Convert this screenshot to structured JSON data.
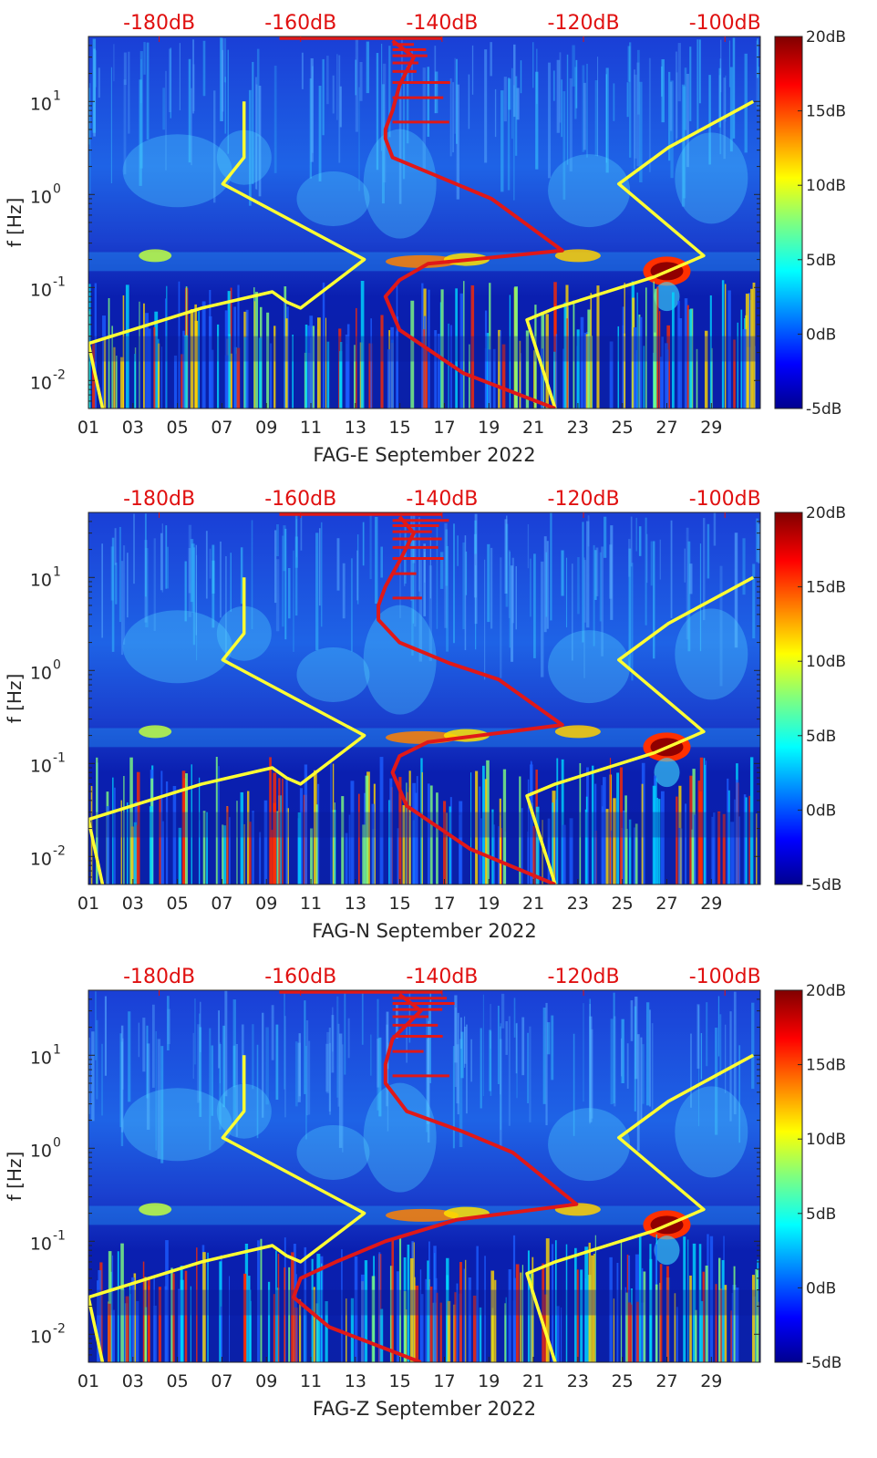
{
  "chart_data": [
    {
      "type": "heatmap",
      "title": "",
      "xlabel": "FAG-E September 2022",
      "ylabel": "f [Hz]",
      "x_ticks": [
        "01",
        "03",
        "05",
        "07",
        "09",
        "11",
        "13",
        "15",
        "17",
        "19",
        "21",
        "23",
        "25",
        "27",
        "29"
      ],
      "y_ticks": [
        {
          "value": 0.01,
          "base": "10",
          "exp": "-2"
        },
        {
          "value": 0.1,
          "base": "10",
          "exp": "-1"
        },
        {
          "value": 1,
          "base": "10",
          "exp": "0"
        },
        {
          "value": 10,
          "base": "10",
          "exp": "1"
        }
      ],
      "top_axis_labels": [
        "-180dB",
        "-160dB",
        "-140dB",
        "-120dB",
        "-100dB"
      ],
      "colorbar": {
        "labels": [
          "20dB",
          "15dB",
          "10dB",
          "5dB",
          "0dB",
          "-5dB"
        ],
        "range": [
          -5,
          20
        ],
        "colormap": "jet"
      },
      "xlim_days": [
        1,
        31.2
      ],
      "ylim_hz": [
        0.005,
        50
      ],
      "noise_model_curves_dB": {
        "high": [
          [
            -96,
            10
          ],
          [
            -108,
            3.2
          ],
          [
            -115,
            1.3
          ],
          [
            -103,
            0.22
          ],
          [
            -110,
            0.13
          ],
          [
            -124,
            0.06
          ],
          [
            -128,
            0.045
          ],
          [
            -124,
            0.005
          ]
        ],
        "low": [
          [
            -168,
            10
          ],
          [
            -168,
            2.5
          ],
          [
            -171,
            1.3
          ],
          [
            -151,
            0.2
          ],
          [
            -160,
            0.06
          ],
          [
            -162,
            0.07
          ],
          [
            -164,
            0.09
          ],
          [
            -174,
            0.06
          ],
          [
            -190,
            0.025
          ],
          [
            -188,
            0.005
          ]
        ]
      },
      "median_psd_curve_dB": [
        [
          -147,
          45
        ],
        [
          -144,
          30
        ],
        [
          -146,
          15
        ],
        [
          -147,
          8
        ],
        [
          -148,
          5
        ],
        [
          -148,
          4
        ],
        [
          -147,
          2.5
        ],
        [
          -140,
          1.5
        ],
        [
          -133,
          0.9
        ],
        [
          -123,
          0.25
        ],
        [
          -142,
          0.18
        ],
        [
          -146,
          0.12
        ],
        [
          -148,
          0.08
        ],
        [
          -146,
          0.035
        ],
        [
          -137,
          0.012
        ],
        [
          -124,
          0.005
        ]
      ]
    },
    {
      "type": "heatmap",
      "title": "",
      "xlabel": "FAG-N September 2022",
      "ylabel": "f [Hz]",
      "x_ticks": [
        "01",
        "03",
        "05",
        "07",
        "09",
        "11",
        "13",
        "15",
        "17",
        "19",
        "21",
        "23",
        "25",
        "27",
        "29"
      ],
      "y_ticks": [
        {
          "value": 0.01,
          "base": "10",
          "exp": "-2"
        },
        {
          "value": 0.1,
          "base": "10",
          "exp": "-1"
        },
        {
          "value": 1,
          "base": "10",
          "exp": "0"
        },
        {
          "value": 10,
          "base": "10",
          "exp": "1"
        }
      ],
      "top_axis_labels": [
        "-180dB",
        "-160dB",
        "-140dB",
        "-120dB",
        "-100dB"
      ],
      "colorbar": {
        "labels": [
          "20dB",
          "15dB",
          "10dB",
          "5dB",
          "0dB",
          "-5dB"
        ],
        "range": [
          -5,
          20
        ],
        "colormap": "jet"
      },
      "xlim_days": [
        1,
        31.2
      ],
      "ylim_hz": [
        0.005,
        50
      ],
      "noise_model_curves_dB": {
        "high": [
          [
            -96,
            10
          ],
          [
            -108,
            3.2
          ],
          [
            -115,
            1.3
          ],
          [
            -103,
            0.22
          ],
          [
            -110,
            0.13
          ],
          [
            -124,
            0.06
          ],
          [
            -128,
            0.045
          ],
          [
            -124,
            0.005
          ]
        ],
        "low": [
          [
            -168,
            10
          ],
          [
            -168,
            2.5
          ],
          [
            -171,
            1.3
          ],
          [
            -151,
            0.2
          ],
          [
            -160,
            0.06
          ],
          [
            -162,
            0.07
          ],
          [
            -164,
            0.09
          ],
          [
            -174,
            0.06
          ],
          [
            -190,
            0.025
          ],
          [
            -188,
            0.005
          ]
        ]
      },
      "median_psd_curve_dB": [
        [
          -146,
          45
        ],
        [
          -144,
          30
        ],
        [
          -146,
          15
        ],
        [
          -148,
          8
        ],
        [
          -149,
          5
        ],
        [
          -149,
          3.5
        ],
        [
          -146,
          2
        ],
        [
          -139,
          1.2
        ],
        [
          -132,
          0.8
        ],
        [
          -123,
          0.26
        ],
        [
          -142,
          0.17
        ],
        [
          -146,
          0.12
        ],
        [
          -147,
          0.08
        ],
        [
          -145,
          0.035
        ],
        [
          -136,
          0.012
        ],
        [
          -124,
          0.005
        ]
      ]
    },
    {
      "type": "heatmap",
      "title": "",
      "xlabel": "FAG-Z September 2022",
      "ylabel": "f [Hz]",
      "x_ticks": [
        "01",
        "03",
        "05",
        "07",
        "09",
        "11",
        "13",
        "15",
        "17",
        "19",
        "21",
        "23",
        "25",
        "27",
        "29"
      ],
      "y_ticks": [
        {
          "value": 0.01,
          "base": "10",
          "exp": "-2"
        },
        {
          "value": 0.1,
          "base": "10",
          "exp": "-1"
        },
        {
          "value": 1,
          "base": "10",
          "exp": "0"
        },
        {
          "value": 10,
          "base": "10",
          "exp": "1"
        }
      ],
      "top_axis_labels": [
        "-180dB",
        "-160dB",
        "-140dB",
        "-120dB",
        "-100dB"
      ],
      "colorbar": {
        "labels": [
          "20dB",
          "15dB",
          "10dB",
          "5dB",
          "0dB",
          "-5dB"
        ],
        "range": [
          -5,
          20
        ],
        "colormap": "jet"
      },
      "xlim_days": [
        1,
        31.2
      ],
      "ylim_hz": [
        0.005,
        50
      ],
      "noise_model_curves_dB": {
        "high": [
          [
            -96,
            10
          ],
          [
            -108,
            3.2
          ],
          [
            -115,
            1.3
          ],
          [
            -103,
            0.22
          ],
          [
            -110,
            0.13
          ],
          [
            -124,
            0.06
          ],
          [
            -128,
            0.045
          ],
          [
            -124,
            0.005
          ]
        ],
        "low": [
          [
            -168,
            10
          ],
          [
            -168,
            2.5
          ],
          [
            -171,
            1.3
          ],
          [
            -151,
            0.2
          ],
          [
            -160,
            0.06
          ],
          [
            -162,
            0.07
          ],
          [
            -164,
            0.09
          ],
          [
            -174,
            0.06
          ],
          [
            -190,
            0.025
          ],
          [
            -188,
            0.005
          ]
        ]
      },
      "median_psd_curve_dB": [
        [
          -146,
          45
        ],
        [
          -143,
          30
        ],
        [
          -147,
          15
        ],
        [
          -148,
          8
        ],
        [
          -148,
          5
        ],
        [
          -145,
          2.5
        ],
        [
          -137,
          1.5
        ],
        [
          -130,
          0.9
        ],
        [
          -121,
          0.25
        ],
        [
          -138,
          0.17
        ],
        [
          -148,
          0.1
        ],
        [
          -155,
          0.06
        ],
        [
          -160,
          0.04
        ],
        [
          -161,
          0.025
        ],
        [
          -156,
          0.012
        ],
        [
          -143,
          0.005
        ]
      ]
    }
  ]
}
